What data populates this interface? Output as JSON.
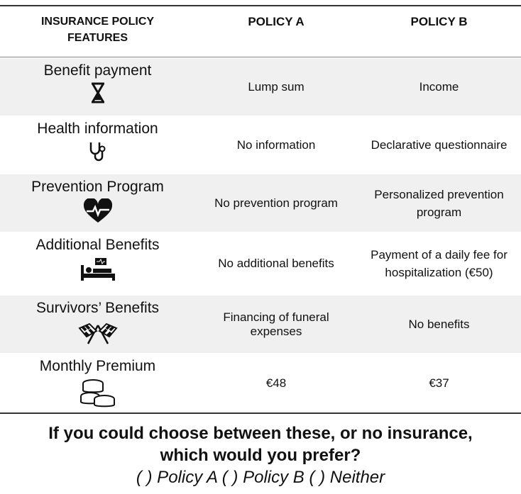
{
  "table": {
    "header": [
      "INSURANCE POLICY FEATURES",
      "POLICY A",
      "POLICY B"
    ],
    "rows": [
      [
        "Benefit payment",
        "Lump sum",
        "Income"
      ],
      [
        "Health information",
        "No information",
        "Declarative questionnaire"
      ],
      [
        "Prevention Program",
        "No prevention program",
        "Personalized prevention program"
      ],
      [
        "Additional Benefits",
        "No additional benefits",
        "Payment of a daily fee for hospitalization (€50)"
      ],
      [
        "Survivors’ Benefits",
        "Financing of funeral expenses",
        "No benefits"
      ],
      [
        "Monthly Premium",
        "€48",
        "€37"
      ]
    ]
  },
  "question": "If you could choose between these, or no insurance, which would you prefer?",
  "options": "( ) Policy A ( ) Policy B ( ) Neither"
}
